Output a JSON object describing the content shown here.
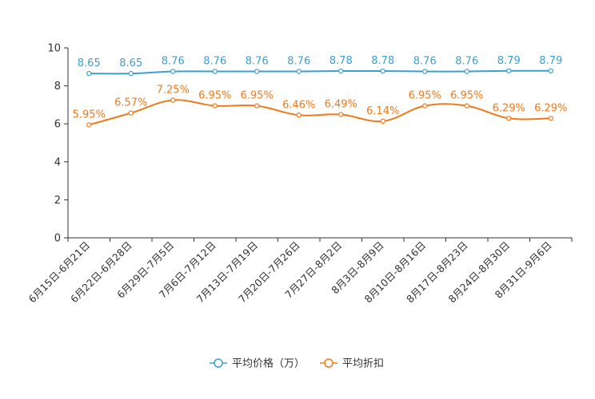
{
  "chart_data": {
    "type": "line",
    "title": "",
    "xlabel": "",
    "ylabel": "",
    "ylim": [
      0,
      10
    ],
    "yticks": [
      0,
      2,
      4,
      6,
      8,
      10
    ],
    "grid": false,
    "legend_position": "bottom-center",
    "categories": [
      "6月15日-6月21日",
      "6月22日-6月28日",
      "6月29日-7月5日",
      "7月6日-7月12日",
      "7月13日-7月19日",
      "7月20日-7月26日",
      "7月27日-8月2日",
      "8月3日-8月9日",
      "8月10日-8月16日",
      "8月17日-8月23日",
      "8月24日-8月30日",
      "8月31日-9月6日"
    ],
    "series": [
      {
        "name": "平均价格（万）",
        "color": "#3a9fd3",
        "values": [
          8.65,
          8.65,
          8.76,
          8.76,
          8.76,
          8.76,
          8.78,
          8.78,
          8.76,
          8.76,
          8.79,
          8.79
        ],
        "labels": [
          "8.65",
          "8.65",
          "8.76",
          "8.76",
          "8.76",
          "8.76",
          "8.78",
          "8.78",
          "8.76",
          "8.76",
          "8.79",
          "8.79"
        ]
      },
      {
        "name": "平均折扣",
        "color": "#f07a1a",
        "values": [
          5.95,
          6.57,
          7.25,
          6.95,
          6.95,
          6.46,
          6.49,
          6.14,
          6.95,
          6.95,
          6.29,
          6.29
        ],
        "labels": [
          "5.95%",
          "6.57%",
          "7.25%",
          "6.95%",
          "6.95%",
          "6.46%",
          "6.49%",
          "6.14%",
          "6.95%",
          "6.95%",
          "6.29%",
          "6.29%"
        ]
      }
    ]
  }
}
